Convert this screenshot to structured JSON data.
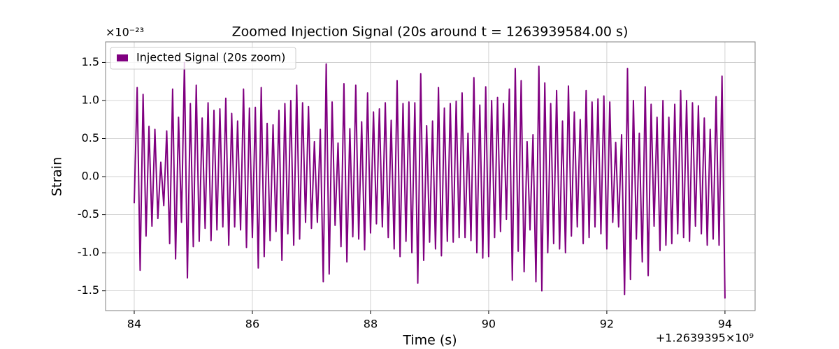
{
  "chart_data": {
    "type": "line",
    "title": "Zoomed Injection Signal (20s around t = 1263939584.00 s)",
    "x_label": "Time (s)",
    "y_label": "Strain",
    "x_offset_label": "+1.2639395×10⁹",
    "y_offset_label": "×10⁻²³",
    "xlim": [
      83.515,
      94.51
    ],
    "ylim": [
      -1.76,
      1.77
    ],
    "xticks": [
      84,
      86,
      88,
      90,
      92,
      94
    ],
    "yticks": [
      -1.5,
      -1.0,
      -0.5,
      0.0,
      0.5,
      1.0,
      1.5
    ],
    "grid": true,
    "legend_position": "upper left",
    "x": [
      84,
      84.05,
      84.1,
      84.15,
      84.2,
      84.25,
      84.3,
      84.35,
      84.4,
      84.45,
      84.5,
      84.55,
      84.6,
      84.65,
      84.7,
      84.75,
      84.8,
      84.85,
      84.9,
      84.95,
      85,
      85.05,
      85.1,
      85.15,
      85.2,
      85.25,
      85.3,
      85.35,
      85.4,
      85.45,
      85.5,
      85.55,
      85.6,
      85.65,
      85.7,
      85.75,
      85.8,
      85.85,
      85.9,
      85.95,
      86,
      86.05,
      86.1,
      86.15,
      86.2,
      86.25,
      86.3,
      86.35,
      86.4,
      86.45,
      86.5,
      86.55,
      86.6,
      86.65,
      86.7,
      86.75,
      86.8,
      86.85,
      86.9,
      86.95,
      87,
      87.05,
      87.1,
      87.15,
      87.2,
      87.25,
      87.3,
      87.35,
      87.4,
      87.45,
      87.5,
      87.55,
      87.6,
      87.65,
      87.7,
      87.75,
      87.8,
      87.85,
      87.9,
      87.95,
      88,
      88.05,
      88.1,
      88.15,
      88.2,
      88.25,
      88.3,
      88.35,
      88.4,
      88.45,
      88.5,
      88.55,
      88.6,
      88.65,
      88.7,
      88.75,
      88.8,
      88.85,
      88.9,
      88.95,
      89,
      89.05,
      89.1,
      89.15,
      89.2,
      89.25,
      89.3,
      89.35,
      89.4,
      89.45,
      89.5,
      89.55,
      89.6,
      89.65,
      89.7,
      89.75,
      89.8,
      89.85,
      89.9,
      89.95,
      90,
      90.05,
      90.1,
      90.15,
      90.2,
      90.25,
      90.3,
      90.35,
      90.4,
      90.45,
      90.5,
      90.55,
      90.6,
      90.65,
      90.7,
      90.75,
      90.8,
      90.85,
      90.9,
      90.95,
      91,
      91.05,
      91.1,
      91.15,
      91.2,
      91.25,
      91.3,
      91.35,
      91.4,
      91.45,
      91.5,
      91.55,
      91.6,
      91.65,
      91.7,
      91.75,
      91.8,
      91.85,
      91.9,
      91.95,
      92,
      92.05,
      92.1,
      92.15,
      92.2,
      92.25,
      92.3,
      92.35,
      92.4,
      92.45,
      92.5,
      92.55,
      92.6,
      92.65,
      92.7,
      92.75,
      92.8,
      92.85,
      92.9,
      92.95,
      93,
      93.05,
      93.1,
      93.15,
      93.2,
      93.25,
      93.3,
      93.35,
      93.4,
      93.45,
      93.5,
      93.55,
      93.6,
      93.65,
      93.7,
      93.75,
      93.8,
      93.85,
      93.9,
      93.95,
      94
    ],
    "series": [
      {
        "name": "Injected Signal (20s zoom)",
        "color": "#800080",
        "values": [
          -0.35,
          1.17,
          -1.23,
          1.08,
          -0.78,
          0.66,
          -0.65,
          0.62,
          -0.55,
          0.19,
          -0.38,
          0.6,
          -0.88,
          1.15,
          -1.08,
          0.78,
          -0.6,
          1.5,
          -1.33,
          0.96,
          -0.92,
          1.2,
          -0.85,
          0.77,
          -0.68,
          0.97,
          -0.84,
          0.87,
          -0.7,
          0.89,
          -0.66,
          1.03,
          -0.9,
          0.83,
          -0.66,
          0.73,
          -0.7,
          1.15,
          -0.93,
          0.9,
          -0.8,
          0.91,
          -1.2,
          1.17,
          -1.05,
          0.7,
          -0.84,
          0.68,
          -0.72,
          0.87,
          -1.1,
          0.96,
          -0.75,
          1.0,
          -0.9,
          1.2,
          -0.82,
          0.97,
          -0.6,
          0.92,
          -0.68,
          0.46,
          -0.6,
          0.62,
          -1.38,
          1.48,
          -1.28,
          0.98,
          -0.64,
          0.44,
          -0.92,
          1.22,
          -1.12,
          0.63,
          -0.79,
          1.2,
          -0.82,
          0.72,
          -0.96,
          1.1,
          -0.74,
          0.85,
          -0.62,
          0.89,
          -0.66,
          0.97,
          -0.8,
          0.74,
          -0.95,
          1.26,
          -1.05,
          0.96,
          -0.85,
          0.98,
          -1.0,
          0.97,
          -1.4,
          1.35,
          -1.1,
          0.67,
          -0.86,
          0.73,
          -0.95,
          1.17,
          -1.04,
          0.9,
          -0.85,
          0.96,
          -0.86,
          0.99,
          -0.8,
          1.1,
          -0.8,
          0.57,
          -0.84,
          1.3,
          -1.0,
          0.94,
          -1.07,
          1.18,
          -1.05,
          1.0,
          -0.8,
          1.04,
          -0.72,
          0.96,
          -0.56,
          1.15,
          -1.36,
          1.42,
          -0.98,
          1.26,
          -1.25,
          0.46,
          -0.7,
          0.55,
          -1.38,
          1.45,
          -1.5,
          1.23,
          -1.0,
          0.96,
          -0.88,
          1.13,
          -0.95,
          0.73,
          -1.0,
          1.19,
          -0.78,
          0.85,
          -0.66,
          0.75,
          -0.88,
          1.13,
          -0.8,
          0.98,
          -0.66,
          1.02,
          -0.75,
          1.06,
          -0.95,
          0.98,
          -0.6,
          0.45,
          -0.66,
          0.55,
          -1.55,
          1.42,
          -1.35,
          1.0,
          -0.82,
          0.57,
          -1.12,
          1.18,
          -1.3,
          0.95,
          -0.65,
          0.78,
          -0.97,
          1.0,
          -0.9,
          0.78,
          -0.88,
          0.95,
          -0.75,
          1.13,
          -0.8,
          1.0,
          -0.85,
          0.97,
          -0.65,
          0.93,
          -0.75,
          0.77,
          -0.9,
          0.62,
          -0.82,
          1.05,
          -0.9,
          1.32,
          -1.6
        ]
      }
    ]
  }
}
